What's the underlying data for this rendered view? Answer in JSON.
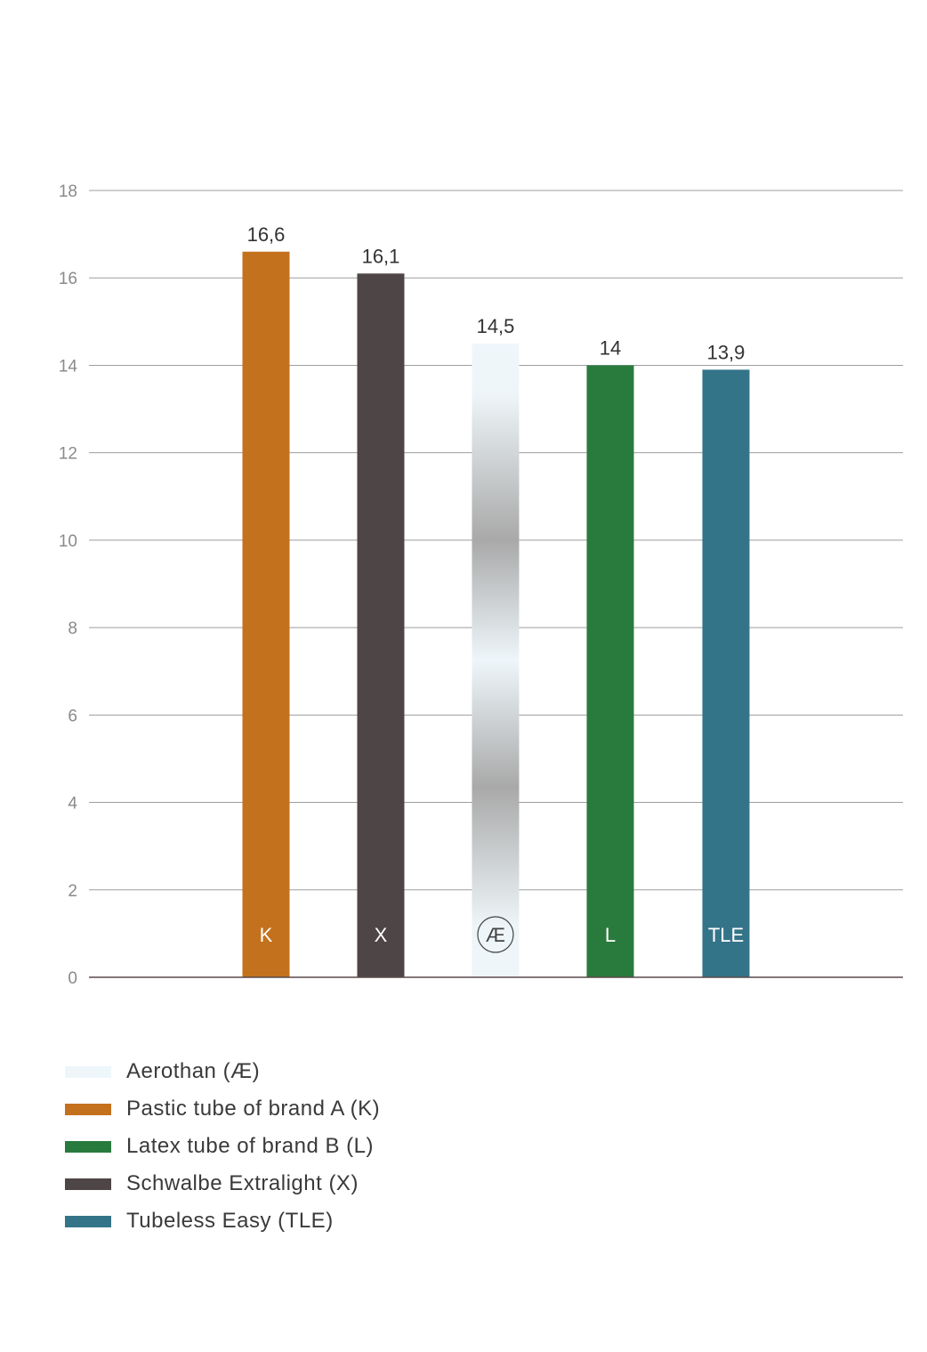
{
  "chart_data": {
    "type": "bar",
    "title": "",
    "xlabel": "",
    "ylabel": "",
    "ylim": [
      0,
      18
    ],
    "yticks": [
      0,
      2,
      4,
      6,
      8,
      10,
      12,
      14,
      16,
      18
    ],
    "grid": true,
    "legend_position": "bottom-left",
    "categories": [
      "K",
      "X",
      "Æ",
      "L",
      "TLE"
    ],
    "values": [
      16.6,
      16.1,
      14.5,
      14,
      13.9
    ],
    "value_labels": [
      "16,6",
      "16,1",
      "14,5",
      "14",
      "13,9"
    ],
    "colors": [
      "#c4711d",
      "#4e4546",
      "gradient-silver",
      "#287b3d",
      "#347489"
    ],
    "legend": [
      {
        "label": "Aerothan (Æ)",
        "color": "#eef6fa"
      },
      {
        "label": "Pastic tube of brand A (K)",
        "color": "#c4711d"
      },
      {
        "label": "Latex tube of brand B (L)",
        "color": "#287b3d"
      },
      {
        "label": "Schwalbe Extralight (X)",
        "color": "#4e4546"
      },
      {
        "label": "Tubeless Easy (TLE)",
        "color": "#347489"
      }
    ]
  }
}
